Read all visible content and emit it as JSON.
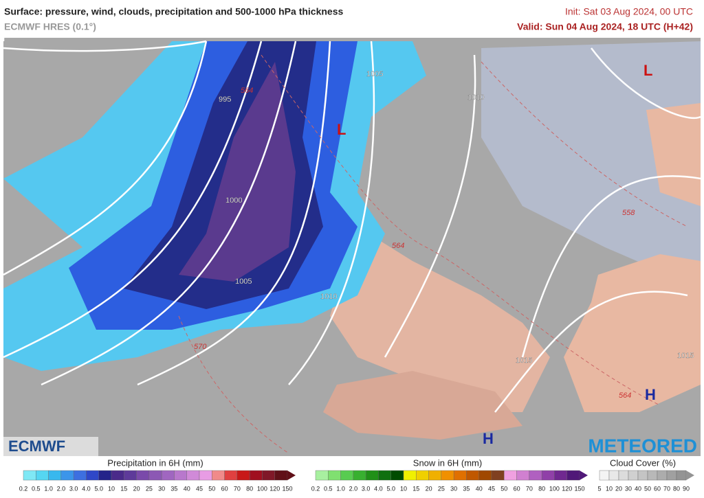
{
  "header": {
    "title": "Surface: pressure, wind, clouds, precipitation and 500-1000 hPa thickness",
    "model": "ECMWF HRES (0.1°)",
    "init": "Init: Sat 03 Aug 2024, 00 UTC",
    "valid": "Valid: Sun 04 Aug 2024, 18 UTC (H+42)"
  },
  "map": {
    "isobar_labels": [
      "995",
      "1000",
      "1005",
      "1010",
      "1005",
      "1010",
      "1015",
      "1015"
    ],
    "thickness_labels": [
      "564",
      "558",
      "564",
      "564",
      "570"
    ],
    "pressure_centers": [
      "L",
      "L",
      "H",
      "H"
    ]
  },
  "logos": {
    "left": "ECMWF",
    "right": "METEORED"
  },
  "legend": {
    "precipitation": {
      "title": "Precipitation in 6H (mm)",
      "ticks": [
        "0.2",
        "0.5",
        "1.0",
        "2.0",
        "3.0",
        "4.0",
        "5.0",
        "10",
        "15",
        "20",
        "25",
        "30",
        "35",
        "40",
        "45",
        "50",
        "60",
        "70",
        "80",
        "100",
        "120",
        "150"
      ]
    },
    "snow": {
      "title": "Snow in 6H (mm)",
      "ticks": [
        "0.2",
        "0.5",
        "1.0",
        "2.0",
        "3.0",
        "4.0",
        "5.0",
        "10",
        "15",
        "20",
        "25",
        "30",
        "35",
        "40",
        "45",
        "50",
        "60",
        "70",
        "80",
        "100",
        "120",
        "150"
      ]
    },
    "cloud": {
      "title": "Cloud Cover (%)",
      "ticks": [
        "5",
        "10",
        "20",
        "30",
        "40",
        "50",
        "60",
        "70",
        "80",
        "90"
      ]
    }
  }
}
